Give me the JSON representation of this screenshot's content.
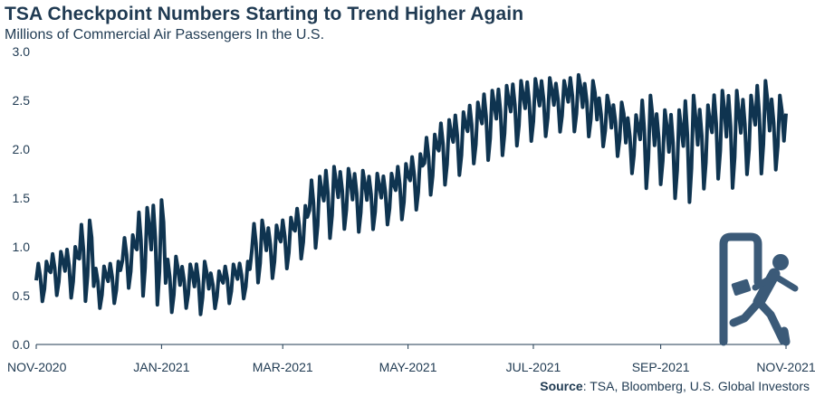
{
  "header": {
    "title": "TSA Checkpoint Numbers Starting to Trend Higher Again",
    "subtitle": "Millions of Commercial Air Passengers In the U.S."
  },
  "footer": {
    "source_label": "Source",
    "source_text": ": TSA, Bloomberg, U.S. Global Investors"
  },
  "icon": {
    "name": "airport-traveler-icon",
    "color": "#3b5a78"
  },
  "colors": {
    "line": "#0f3450",
    "text": "#1f3a52"
  },
  "chart_data": {
    "type": "line",
    "title": "TSA Checkpoint Numbers Starting to Trend Higher Again",
    "subtitle": "Millions of Commercial Air Passengers In the U.S.",
    "xlabel": "",
    "ylabel": "",
    "ylim": [
      0,
      3.0
    ],
    "yticks": [
      "0.0",
      "0.5",
      "1.0",
      "1.5",
      "2.0",
      "2.5",
      "3.0"
    ],
    "xtick_labels": [
      "NOV-2020",
      "JAN-2021",
      "MAR-2021",
      "MAY-2021",
      "JUL-2021",
      "SEP-2021",
      "NOV-2021"
    ],
    "grid": false,
    "legend": "none",
    "series": [
      {
        "frequency": "weekly",
        "x": [
          "2020-11-01",
          "2020-11-08",
          "2020-11-15",
          "2020-11-22",
          "2020-11-29",
          "2020-12-06",
          "2020-12-13",
          "2020-12-20",
          "2020-12-27",
          "2021-01-03",
          "2021-01-10",
          "2021-01-17",
          "2021-01-24",
          "2021-01-31",
          "2021-02-07",
          "2021-02-14",
          "2021-02-21",
          "2021-02-28",
          "2021-03-07",
          "2021-03-14",
          "2021-03-21",
          "2021-03-28",
          "2021-04-04",
          "2021-04-11",
          "2021-04-18",
          "2021-04-25",
          "2021-05-02",
          "2021-05-09",
          "2021-05-16",
          "2021-05-23",
          "2021-05-30",
          "2021-06-06",
          "2021-06-13",
          "2021-06-20",
          "2021-06-27",
          "2021-07-04",
          "2021-07-11",
          "2021-07-18",
          "2021-07-25",
          "2021-08-01",
          "2021-08-08",
          "2021-08-15",
          "2021-08-22",
          "2021-08-29",
          "2021-09-05",
          "2021-09-12",
          "2021-09-19",
          "2021-09-26",
          "2021-10-03",
          "2021-10-10",
          "2021-10-17",
          "2021-10-24",
          "2021-10-31"
        ],
        "peaks": [
          0.85,
          0.95,
          1.0,
          1.27,
          0.8,
          0.85,
          1.12,
          1.4,
          1.48,
          0.9,
          0.82,
          0.85,
          0.75,
          0.82,
          0.85,
          1.27,
          1.22,
          1.3,
          1.42,
          1.72,
          1.82,
          1.8,
          1.78,
          1.75,
          1.75,
          1.85,
          1.95,
          2.15,
          2.3,
          2.38,
          2.48,
          2.6,
          2.65,
          2.7,
          2.72,
          2.73,
          2.7,
          2.76,
          2.7,
          2.55,
          2.48,
          2.35,
          2.55,
          2.4,
          2.4,
          2.55,
          2.45,
          2.6,
          2.6,
          2.55,
          2.7,
          2.55,
          2.4
        ],
        "troughs": [
          0.42,
          0.48,
          0.45,
          0.4,
          0.35,
          0.4,
          0.55,
          0.45,
          0.35,
          0.3,
          0.35,
          0.28,
          0.35,
          0.4,
          0.45,
          0.6,
          0.65,
          0.75,
          0.85,
          0.95,
          1.05,
          1.15,
          1.12,
          1.15,
          1.2,
          1.25,
          1.35,
          1.5,
          1.6,
          1.7,
          1.82,
          1.85,
          1.9,
          2.0,
          2.05,
          2.1,
          2.15,
          2.15,
          2.1,
          2.0,
          1.9,
          1.72,
          1.55,
          1.6,
          1.45,
          1.4,
          1.55,
          1.65,
          1.55,
          1.7,
          1.7,
          1.75,
          1.7
        ]
      }
    ]
  }
}
